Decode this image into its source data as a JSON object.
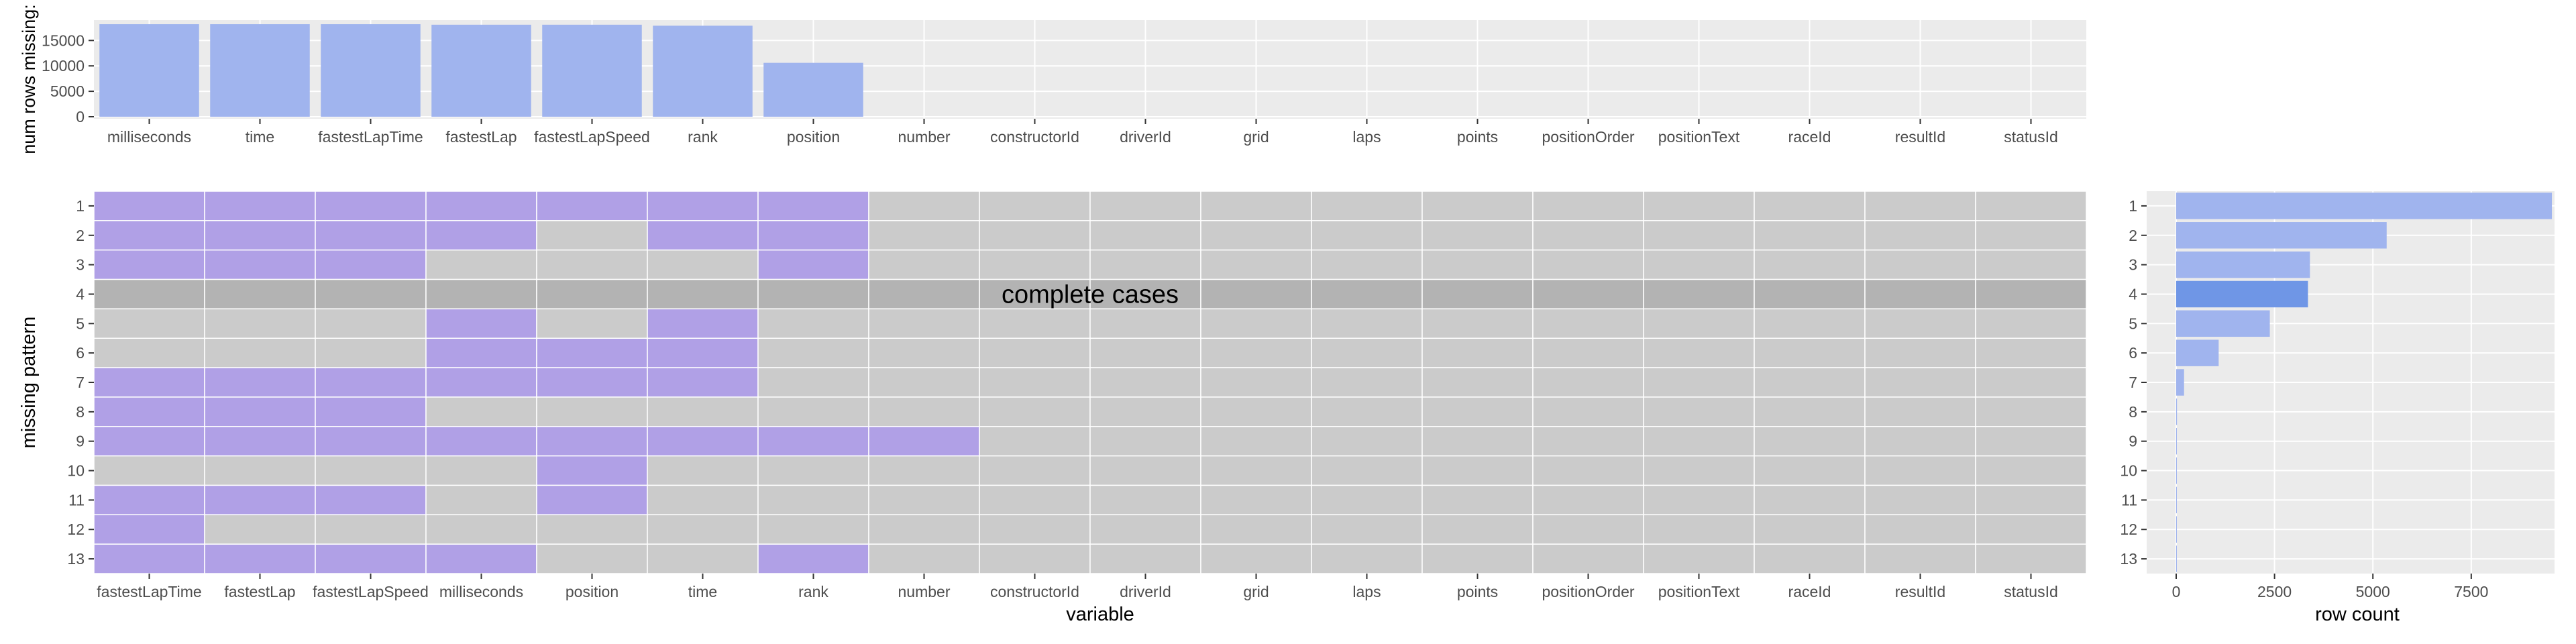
{
  "colors": {
    "panel_bg": "#EBEBEB",
    "grid": "#FFFFFF",
    "bar": "#A0B4EE",
    "bar_highlight": "#6F96E6",
    "missing": "#B0A0E6",
    "observed": "#CBCBCB",
    "complete_row": "#B3B3B3",
    "axis_text": "#4D4D4D",
    "title_text": "#000000"
  },
  "chart_data": [
    {
      "type": "bar",
      "panel": "top",
      "ylabel": "num rows missing:",
      "xlabel": "",
      "ylim": [
        0,
        19000
      ],
      "yticks": [
        0,
        5000,
        10000,
        15000
      ],
      "ytick_labels": [
        "0",
        "5000",
        "10000",
        "15000"
      ],
      "categories": [
        "milliseconds",
        "time",
        "fastestLapTime",
        "fastestLap",
        "fastestLapSpeed",
        "rank",
        "position",
        "number",
        "constructorId",
        "driverId",
        "grid",
        "laps",
        "points",
        "positionOrder",
        "positionText",
        "raceId",
        "resultId",
        "statusId"
      ],
      "values": [
        18200,
        18200,
        18200,
        18100,
        18100,
        17900,
        10600,
        0,
        0,
        0,
        0,
        0,
        0,
        0,
        0,
        0,
        0,
        0
      ]
    },
    {
      "type": "heatmap",
      "panel": "main",
      "xlabel": "variable",
      "ylabel": "missing pattern",
      "columns": [
        "fastestLapTime",
        "fastestLap",
        "fastestLapSpeed",
        "milliseconds",
        "position",
        "time",
        "rank",
        "number",
        "constructorId",
        "driverId",
        "grid",
        "laps",
        "points",
        "positionOrder",
        "positionText",
        "raceId",
        "resultId",
        "statusId"
      ],
      "rows": [
        "1",
        "2",
        "3",
        "4",
        "5",
        "6",
        "7",
        "8",
        "9",
        "10",
        "11",
        "12",
        "13"
      ],
      "missing_matrix": [
        [
          1,
          1,
          1,
          1,
          1,
          1,
          1,
          0,
          0,
          0,
          0,
          0,
          0,
          0,
          0,
          0,
          0,
          0
        ],
        [
          1,
          1,
          1,
          1,
          0,
          1,
          1,
          0,
          0,
          0,
          0,
          0,
          0,
          0,
          0,
          0,
          0,
          0
        ],
        [
          1,
          1,
          1,
          0,
          0,
          0,
          1,
          0,
          0,
          0,
          0,
          0,
          0,
          0,
          0,
          0,
          0,
          0
        ],
        [
          0,
          0,
          0,
          0,
          0,
          0,
          0,
          0,
          0,
          0,
          0,
          0,
          0,
          0,
          0,
          0,
          0,
          0
        ],
        [
          0,
          0,
          0,
          1,
          0,
          1,
          0,
          0,
          0,
          0,
          0,
          0,
          0,
          0,
          0,
          0,
          0,
          0
        ],
        [
          0,
          0,
          0,
          1,
          1,
          1,
          0,
          0,
          0,
          0,
          0,
          0,
          0,
          0,
          0,
          0,
          0,
          0
        ],
        [
          1,
          1,
          1,
          1,
          1,
          1,
          0,
          0,
          0,
          0,
          0,
          0,
          0,
          0,
          0,
          0,
          0,
          0
        ],
        [
          1,
          1,
          1,
          0,
          0,
          0,
          0,
          0,
          0,
          0,
          0,
          0,
          0,
          0,
          0,
          0,
          0,
          0
        ],
        [
          1,
          1,
          1,
          1,
          1,
          1,
          1,
          1,
          0,
          0,
          0,
          0,
          0,
          0,
          0,
          0,
          0,
          0
        ],
        [
          0,
          0,
          0,
          0,
          1,
          0,
          0,
          0,
          0,
          0,
          0,
          0,
          0,
          0,
          0,
          0,
          0,
          0
        ],
        [
          1,
          1,
          1,
          0,
          1,
          0,
          0,
          0,
          0,
          0,
          0,
          0,
          0,
          0,
          0,
          0,
          0,
          0
        ],
        [
          1,
          0,
          0,
          0,
          0,
          0,
          0,
          0,
          0,
          0,
          0,
          0,
          0,
          0,
          0,
          0,
          0,
          0
        ],
        [
          1,
          1,
          1,
          1,
          0,
          0,
          1,
          0,
          0,
          0,
          0,
          0,
          0,
          0,
          0,
          0,
          0,
          0
        ]
      ],
      "complete_row_index": 3,
      "annotation": "complete cases"
    },
    {
      "type": "bar",
      "panel": "right",
      "orientation": "horizontal",
      "xlabel": "row count",
      "ylabel": "",
      "xlim": [
        0,
        9600
      ],
      "xticks": [
        0,
        2500,
        5000,
        7500
      ],
      "xtick_labels": [
        "0",
        "2500",
        "5000",
        "7500"
      ],
      "categories": [
        "1",
        "2",
        "3",
        "4",
        "5",
        "6",
        "7",
        "8",
        "9",
        "10",
        "11",
        "12",
        "13"
      ],
      "values": [
        9550,
        5350,
        3400,
        3350,
        2380,
        1080,
        200,
        20,
        10,
        5,
        5,
        3,
        2
      ],
      "highlight_index": 3
    }
  ]
}
